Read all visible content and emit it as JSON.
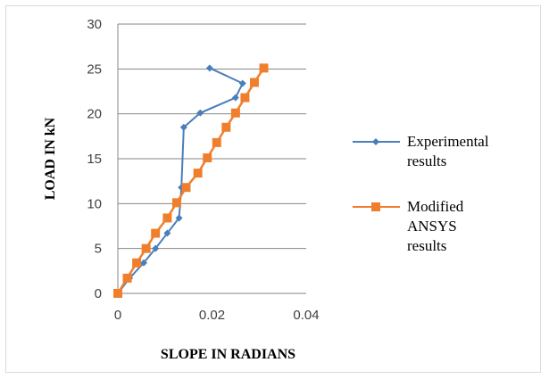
{
  "chart_data": {
    "type": "line",
    "title": "",
    "xlabel": "SLOPE IN RADIANS",
    "ylabel": "LOAD IN kN",
    "xlim": [
      0,
      0.04
    ],
    "ylim": [
      0,
      30
    ],
    "x_ticks": [
      "0",
      "0.02",
      "0.04"
    ],
    "y_ticks": [
      "0",
      "5",
      "10",
      "15",
      "20",
      "25",
      "30"
    ],
    "grid": "horizontal",
    "legend_position": "right",
    "series": [
      {
        "name": "Experimental\nresults",
        "color": "#4a7ebb",
        "marker": "diamond",
        "x": [
          0,
          0.0025,
          0.0055,
          0.008,
          0.0105,
          0.013,
          0.0135,
          0.014,
          0.0175,
          0.025,
          0.0265,
          0.0195
        ],
        "y": [
          0,
          1.7,
          3.4,
          5.0,
          6.7,
          8.4,
          11.8,
          18.5,
          20.1,
          21.8,
          23.4,
          25.1
        ]
      },
      {
        "name": "Modified\nANSYS\nresults",
        "color": "#f07f2d",
        "marker": "square",
        "x": [
          0,
          0.002,
          0.004,
          0.006,
          0.008,
          0.0105,
          0.0125,
          0.0145,
          0.017,
          0.019,
          0.021,
          0.023,
          0.025,
          0.027,
          0.029,
          0.031
        ],
        "y": [
          0,
          1.7,
          3.4,
          5.0,
          6.7,
          8.4,
          10.1,
          11.8,
          13.4,
          15.1,
          16.8,
          18.5,
          20.1,
          21.8,
          23.5,
          25.1
        ]
      }
    ]
  }
}
